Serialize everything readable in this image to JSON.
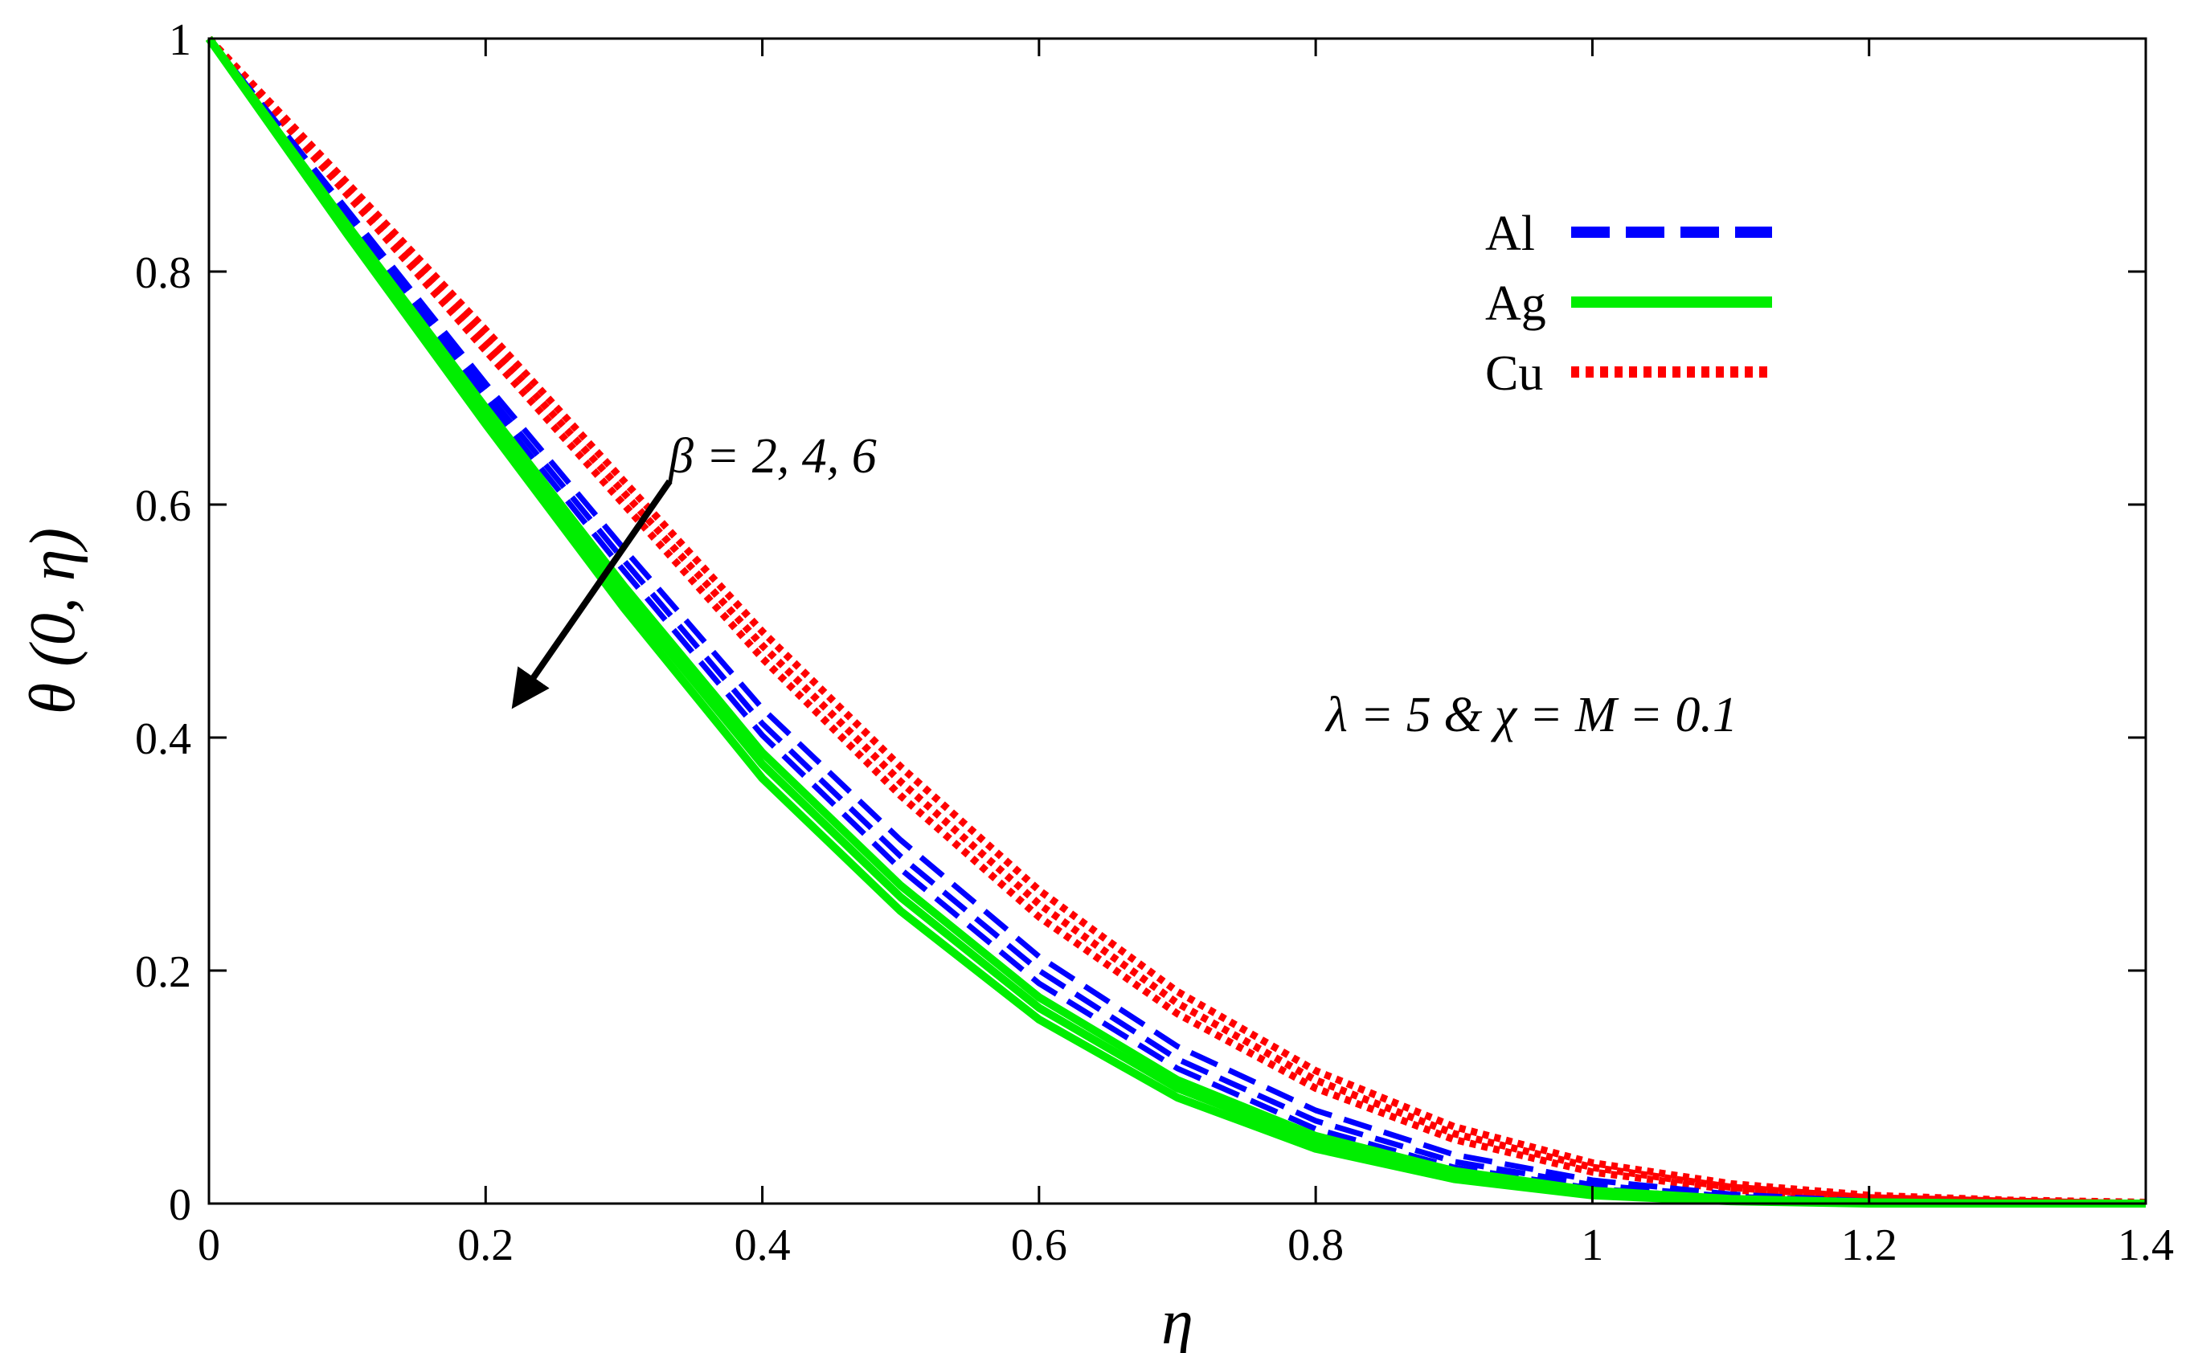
{
  "chart_data": {
    "type": "line",
    "title": "",
    "xlabel": "η",
    "ylabel": "θ (0, η)",
    "xlim": [
      0,
      1.4
    ],
    "ylim": [
      0,
      1
    ],
    "grid": false,
    "xticks": [
      0,
      0.2,
      0.4,
      0.6,
      0.8,
      1,
      1.2,
      1.4
    ],
    "xtick_labels": [
      "0",
      "0.2",
      "0.4",
      "0.6",
      "0.8",
      "1",
      "1.2",
      "1.4"
    ],
    "yticks": [
      0,
      0.2,
      0.4,
      0.6,
      0.8,
      1
    ],
    "ytick_labels": [
      "0",
      "0.2",
      "0.4",
      "0.6",
      "0.8",
      "1"
    ],
    "x": [
      0,
      0.1,
      0.2,
      0.3,
      0.4,
      0.5,
      0.6,
      0.7,
      0.8,
      0.9,
      1.0,
      1.1,
      1.2,
      1.3,
      1.4
    ],
    "series": [
      {
        "name": "Al",
        "beta": 2,
        "color": "#0000ff",
        "style": "dashed",
        "values": [
          1.0,
          0.853,
          0.704,
          0.562,
          0.425,
          0.312,
          0.212,
          0.135,
          0.08,
          0.042,
          0.02,
          0.008,
          0.002,
          0.001,
          0.0
        ]
      },
      {
        "name": "Al",
        "beta": 4,
        "color": "#0000ff",
        "style": "dashed",
        "values": [
          1.0,
          0.848,
          0.697,
          0.552,
          0.412,
          0.298,
          0.2,
          0.124,
          0.071,
          0.036,
          0.016,
          0.006,
          0.002,
          0.0,
          0.0
        ]
      },
      {
        "name": "Al",
        "beta": 6,
        "color": "#0000ff",
        "style": "dashed",
        "values": [
          1.0,
          0.843,
          0.69,
          0.543,
          0.402,
          0.287,
          0.189,
          0.116,
          0.064,
          0.031,
          0.013,
          0.004,
          0.001,
          0.0,
          0.0
        ]
      },
      {
        "name": "Ag",
        "beta": 2,
        "color": "#00ee00",
        "style": "solid",
        "values": [
          1.0,
          0.84,
          0.683,
          0.53,
          0.387,
          0.273,
          0.177,
          0.106,
          0.058,
          0.028,
          0.011,
          0.004,
          0.001,
          0.0,
          0.0
        ]
      },
      {
        "name": "Ag",
        "beta": 4,
        "color": "#00ee00",
        "style": "solid",
        "values": [
          1.0,
          0.836,
          0.676,
          0.521,
          0.377,
          0.263,
          0.168,
          0.099,
          0.053,
          0.024,
          0.009,
          0.003,
          0.001,
          0.0,
          0.0
        ]
      },
      {
        "name": "Ag",
        "beta": 6,
        "color": "#00ee00",
        "style": "solid",
        "values": [
          1.0,
          0.832,
          0.669,
          0.511,
          0.365,
          0.251,
          0.158,
          0.091,
          0.047,
          0.021,
          0.007,
          0.002,
          0.0,
          0.0,
          0.0
        ]
      },
      {
        "name": "Cu",
        "beta": 2,
        "color": "#ff0000",
        "style": "dotted",
        "values": [
          1.0,
          0.876,
          0.75,
          0.62,
          0.491,
          0.375,
          0.269,
          0.182,
          0.114,
          0.066,
          0.035,
          0.017,
          0.007,
          0.003,
          0.001
        ]
      },
      {
        "name": "Cu",
        "beta": 4,
        "color": "#ff0000",
        "style": "dotted",
        "values": [
          1.0,
          0.871,
          0.741,
          0.61,
          0.479,
          0.362,
          0.257,
          0.172,
          0.106,
          0.06,
          0.031,
          0.014,
          0.005,
          0.002,
          0.0
        ]
      },
      {
        "name": "Cu",
        "beta": 6,
        "color": "#ff0000",
        "style": "dotted",
        "values": [
          1.0,
          0.866,
          0.732,
          0.6,
          0.468,
          0.35,
          0.246,
          0.163,
          0.099,
          0.055,
          0.027,
          0.012,
          0.004,
          0.001,
          0.0
        ]
      }
    ],
    "legend": {
      "position": "top-right",
      "entries": [
        {
          "label": "Al",
          "color": "#0000ff",
          "style": "dashed"
        },
        {
          "label": "Ag",
          "color": "#00ee00",
          "style": "solid"
        },
        {
          "label": "Cu",
          "color": "#ff0000",
          "style": "dotted"
        }
      ]
    },
    "annotations": {
      "beta_text": "β = 2, 4, 6",
      "params_text": "λ = 5 & χ = M = 0.1"
    },
    "arrow": {
      "from": [
        0.333,
        0.62
      ],
      "to": [
        0.222,
        0.43
      ]
    }
  }
}
